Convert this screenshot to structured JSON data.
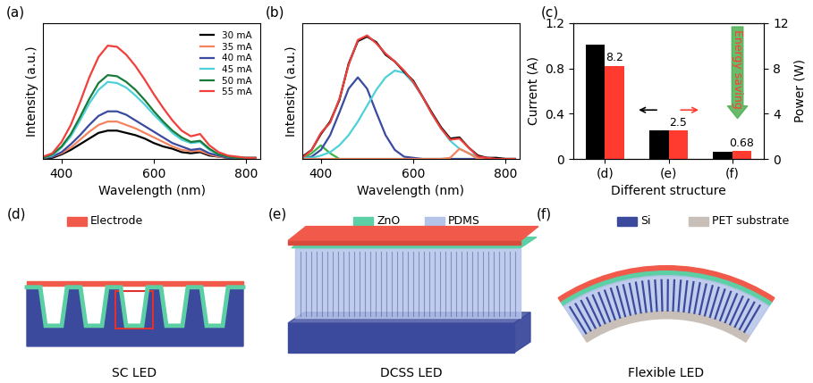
{
  "chart_data": [
    {
      "type": "line",
      "panel_label": "(a)",
      "x_label": "Wavelength (nm)",
      "y_label": "Intensity (a.u.)",
      "x": [
        360,
        380,
        400,
        420,
        440,
        460,
        480,
        500,
        520,
        540,
        560,
        580,
        600,
        620,
        640,
        660,
        680,
        700,
        720,
        740,
        760,
        780,
        800,
        820
      ],
      "xlim": [
        360,
        830
      ],
      "xticks": [
        400,
        600,
        800
      ],
      "ylim": [
        0,
        1.2
      ],
      "tick_labels": "x",
      "legend": "upper right",
      "series": [
        {
          "name": "30 mA",
          "color": "#000000",
          "values": [
            0.01,
            0.01,
            0.04,
            0.08,
            0.13,
            0.18,
            0.23,
            0.25,
            0.25,
            0.23,
            0.21,
            0.18,
            0.14,
            0.11,
            0.09,
            0.06,
            0.05,
            0.06,
            0.03,
            0.02,
            0.01,
            0.01,
            0.0,
            0.0
          ]
        },
        {
          "name": "35 mA",
          "color": "#f4845f",
          "values": [
            0.01,
            0.02,
            0.05,
            0.1,
            0.17,
            0.24,
            0.3,
            0.33,
            0.33,
            0.3,
            0.27,
            0.23,
            0.19,
            0.15,
            0.11,
            0.08,
            0.07,
            0.07,
            0.04,
            0.02,
            0.01,
            0.01,
            0.0,
            0.0
          ]
        },
        {
          "name": "40 mA",
          "color": "#3a4aa0",
          "values": [
            0.01,
            0.02,
            0.06,
            0.13,
            0.21,
            0.3,
            0.38,
            0.42,
            0.42,
            0.39,
            0.34,
            0.29,
            0.24,
            0.19,
            0.14,
            0.11,
            0.08,
            0.09,
            0.05,
            0.03,
            0.01,
            0.01,
            0.0,
            0.0
          ]
        },
        {
          "name": "45 mA",
          "color": "#4fd1d9",
          "values": [
            0.01,
            0.03,
            0.1,
            0.2,
            0.34,
            0.49,
            0.61,
            0.68,
            0.67,
            0.63,
            0.56,
            0.48,
            0.39,
            0.31,
            0.23,
            0.17,
            0.14,
            0.15,
            0.08,
            0.04,
            0.02,
            0.01,
            0.01,
            0.01
          ]
        },
        {
          "name": "50 mA",
          "color": "#1a7a3a",
          "values": [
            0.01,
            0.04,
            0.11,
            0.22,
            0.37,
            0.53,
            0.67,
            0.74,
            0.73,
            0.68,
            0.61,
            0.52,
            0.42,
            0.33,
            0.25,
            0.19,
            0.15,
            0.16,
            0.09,
            0.04,
            0.02,
            0.01,
            0.01,
            0.01
          ]
        },
        {
          "name": "55 mA",
          "color": "#f0403c",
          "values": [
            0.02,
            0.05,
            0.15,
            0.3,
            0.5,
            0.72,
            0.9,
            1.0,
            0.99,
            0.92,
            0.82,
            0.7,
            0.57,
            0.45,
            0.34,
            0.25,
            0.2,
            0.22,
            0.12,
            0.06,
            0.03,
            0.02,
            0.01,
            0.01
          ]
        }
      ]
    },
    {
      "type": "line",
      "panel_label": "(b)",
      "x_label": "Wavelength (nm)",
      "y_label": "Intensity (a.u.)",
      "x": [
        360,
        380,
        400,
        420,
        440,
        460,
        480,
        500,
        520,
        540,
        560,
        580,
        600,
        620,
        640,
        660,
        680,
        700,
        720,
        740,
        760,
        780,
        800,
        820
      ],
      "xlim": [
        360,
        830
      ],
      "xticks": [
        400,
        600,
        800
      ],
      "ylim": [
        0,
        1.2
      ],
      "tick_labels": "x",
      "series": [
        {
          "color": "#3cb44b",
          "values": [
            0.0,
            0.05,
            0.12,
            0.05,
            0.0,
            0.0,
            0.0,
            0.0,
            0.0,
            0.0,
            0.0,
            0.0,
            0.0,
            0.0,
            0.0,
            0.0,
            0.0,
            0.0,
            0.0,
            0.0,
            0.0,
            0.0,
            0.0,
            0.0
          ]
        },
        {
          "color": "#3a4aa0",
          "values": [
            0.0,
            0.02,
            0.08,
            0.21,
            0.41,
            0.62,
            0.72,
            0.62,
            0.41,
            0.21,
            0.08,
            0.02,
            0.01,
            0.0,
            0.0,
            0.0,
            0.0,
            0.0,
            0.0,
            0.0,
            0.0,
            0.0,
            0.0,
            0.0
          ]
        },
        {
          "color": "#4fd1d9",
          "values": [
            0.01,
            0.01,
            0.03,
            0.06,
            0.12,
            0.21,
            0.33,
            0.47,
            0.61,
            0.72,
            0.78,
            0.76,
            0.67,
            0.55,
            0.4,
            0.27,
            0.16,
            0.09,
            0.05,
            0.02,
            0.01,
            0.0,
            0.0,
            0.0
          ]
        },
        {
          "color": "#f4845f",
          "values": [
            0.0,
            0.0,
            0.0,
            0.0,
            0.0,
            0.0,
            0.0,
            0.0,
            0.0,
            0.0,
            0.0,
            0.0,
            0.0,
            0.0,
            0.0,
            0.0,
            0.01,
            0.09,
            0.05,
            0.0,
            0.0,
            0.0,
            0.0,
            0.0
          ]
        },
        {
          "color": "#000000",
          "values": [
            0.02,
            0.08,
            0.22,
            0.33,
            0.52,
            0.84,
            1.04,
            1.08,
            1.03,
            0.92,
            0.86,
            0.77,
            0.69,
            0.55,
            0.41,
            0.28,
            0.18,
            0.19,
            0.1,
            0.03,
            0.01,
            0.01,
            0.0,
            0.0
          ]
        },
        {
          "color": "#f0403c",
          "values": [
            0.01,
            0.08,
            0.23,
            0.32,
            0.53,
            0.83,
            1.05,
            1.09,
            1.02,
            0.93,
            0.86,
            0.78,
            0.68,
            0.55,
            0.4,
            0.27,
            0.17,
            0.18,
            0.1,
            0.02,
            0.01,
            0.0,
            0.0,
            0.0
          ]
        }
      ]
    },
    {
      "type": "bar",
      "panel_label": "(c)",
      "x_label": "Different structure",
      "y_label": "Current (A)",
      "y2_label": "Power (W)",
      "categories": [
        "(d)",
        "(e)",
        "(f)"
      ],
      "ylim": [
        0,
        1.2
      ],
      "yticks": [
        0,
        0.4,
        0.8,
        1.2
      ],
      "y2lim": [
        0,
        12
      ],
      "y2ticks": [
        0,
        4,
        8,
        12
      ],
      "annotations": [
        "Energy saving"
      ],
      "series": [
        {
          "color": "#000000",
          "values": [
            1.01,
            0.25,
            0.06
          ]
        },
        {
          "color": "#ff3b30",
          "axis": "y2",
          "values": [
            8.2,
            2.5,
            0.68
          ],
          "data_labels": true
        }
      ]
    }
  ],
  "diagram": {
    "panels": [
      {
        "label": "(d)",
        "title": "SC LED",
        "legend": [
          {
            "name": "Electrode",
            "color": "#f15a4a"
          }
        ]
      },
      {
        "label": "(e)",
        "title": "DCSS LED",
        "legend": [
          {
            "name": "ZnO",
            "color": "#5ccfa5"
          },
          {
            "name": "PDMS",
            "color": "#b4c3e8"
          }
        ]
      },
      {
        "label": "(f)",
        "title": "Flexible LED",
        "legend": [
          {
            "name": "Si",
            "color": "#3b4a9c"
          },
          {
            "name": "PET substrate",
            "color": "#c8c0b8"
          }
        ]
      }
    ]
  }
}
